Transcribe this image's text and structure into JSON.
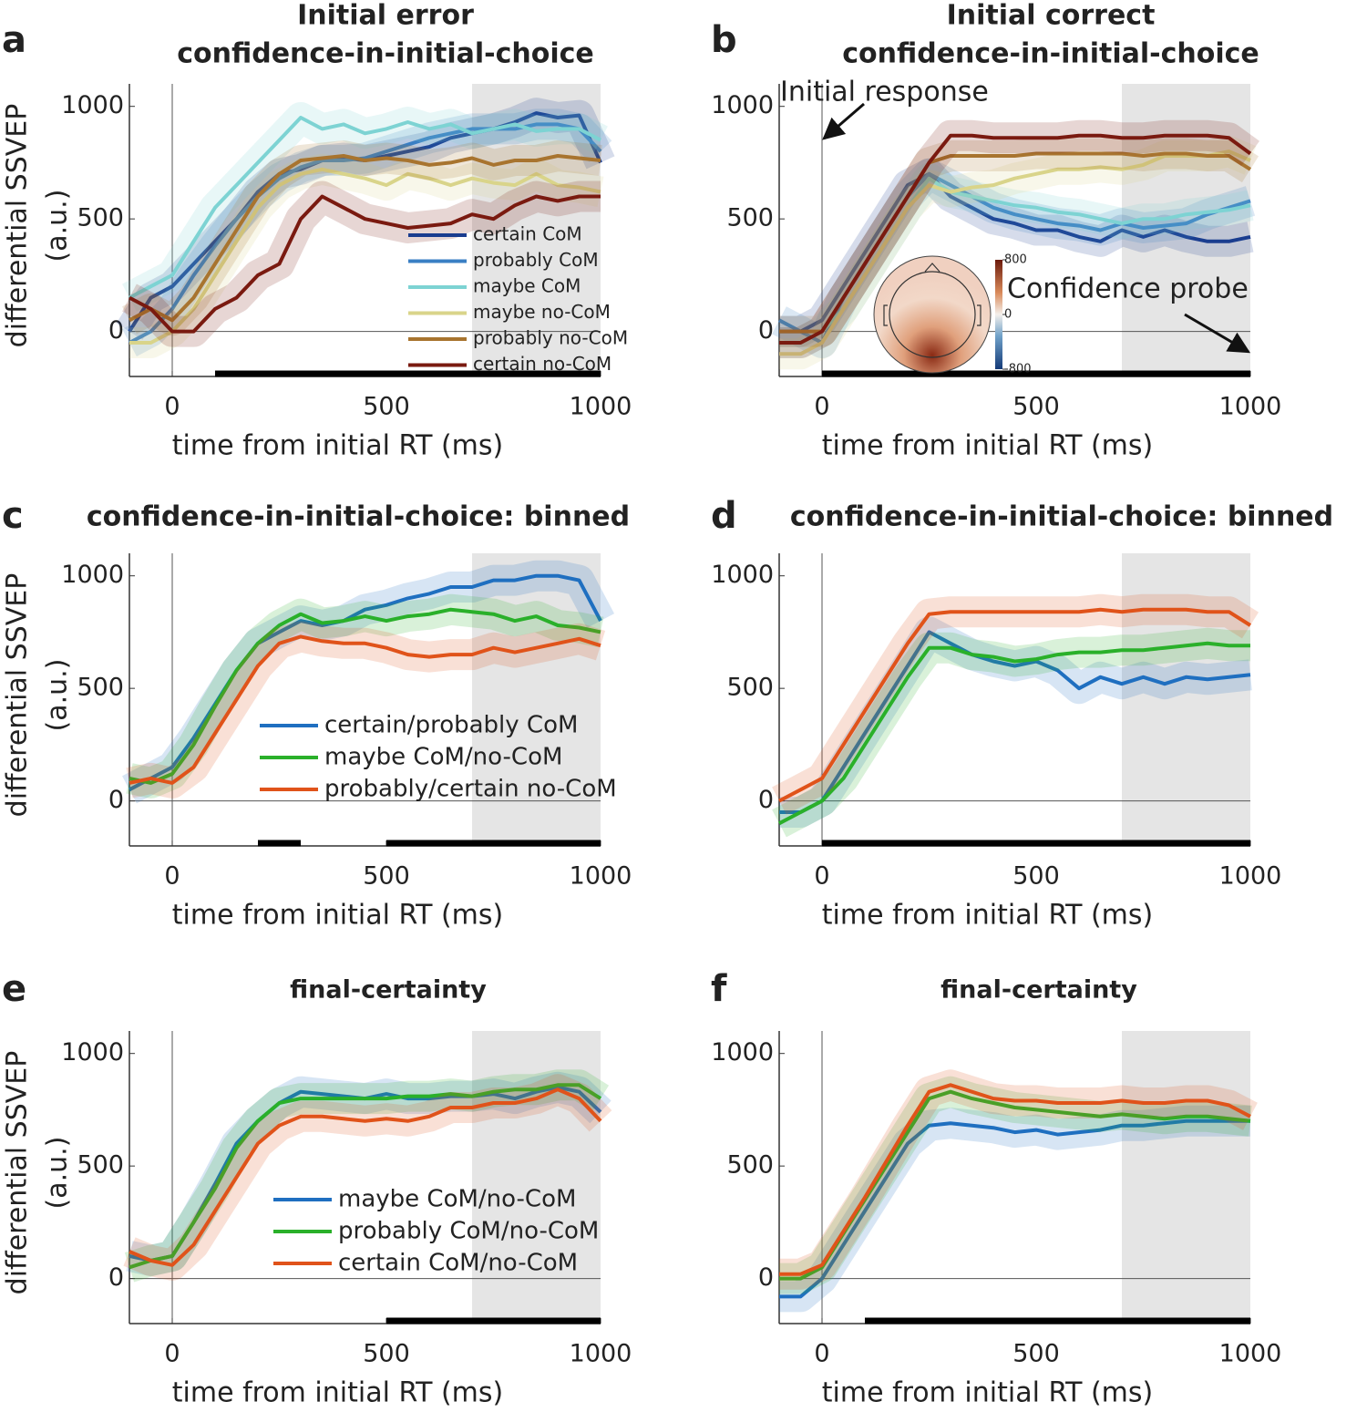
{
  "chart_data": [
    {
      "type": "line",
      "label": "a",
      "title": [
        "Initial error",
        "confidence-in-initial-choice"
      ],
      "xlabel": "time from initial RT (ms)",
      "ylabel": [
        "differential SSVEP",
        "(a.u.)"
      ],
      "x": [
        -100,
        -50,
        0,
        50,
        100,
        150,
        200,
        250,
        300,
        350,
        400,
        450,
        500,
        550,
        600,
        650,
        700,
        750,
        800,
        850,
        900,
        950,
        1000
      ],
      "xlim": [
        -100,
        1000
      ],
      "ylim": [
        -200,
        1100
      ],
      "xticks": [
        0,
        500,
        1000
      ],
      "yticks": [
        0,
        500,
        1000
      ],
      "shaded_region": [
        700,
        1000
      ],
      "significance": [
        [
          100,
          1000
        ]
      ],
      "legend": "lower right",
      "series": [
        {
          "name": "certain CoM",
          "color": "#1a3d8f",
          "values": [
            0,
            150,
            200,
            300,
            400,
            500,
            620,
            700,
            720,
            760,
            770,
            760,
            780,
            800,
            820,
            860,
            880,
            900,
            930,
            970,
            950,
            960,
            750
          ]
        },
        {
          "name": "probably CoM",
          "color": "#3a7fc4",
          "values": [
            -50,
            0,
            100,
            250,
            380,
            500,
            600,
            680,
            730,
            760,
            760,
            770,
            800,
            830,
            860,
            880,
            900,
            900,
            900,
            920,
            920,
            900,
            800
          ]
        },
        {
          "name": "maybe CoM",
          "color": "#7dd3d3",
          "values": [
            150,
            200,
            250,
            400,
            550,
            650,
            750,
            850,
            950,
            900,
            920,
            880,
            900,
            930,
            900,
            920,
            880,
            900,
            920,
            890,
            900,
            900,
            850
          ]
        },
        {
          "name": "maybe no-CoM",
          "color": "#d9d48a",
          "values": [
            -50,
            -50,
            0,
            100,
            250,
            400,
            550,
            650,
            700,
            720,
            700,
            680,
            650,
            700,
            680,
            650,
            680,
            660,
            650,
            700,
            650,
            640,
            620
          ]
        },
        {
          "name": "probably no-CoM",
          "color": "#a8742f",
          "values": [
            50,
            100,
            50,
            150,
            300,
            450,
            600,
            700,
            760,
            770,
            780,
            760,
            770,
            760,
            740,
            750,
            770,
            740,
            760,
            760,
            780,
            770,
            760
          ]
        },
        {
          "name": "certain no-CoM",
          "color": "#7a1a10",
          "values": [
            150,
            100,
            0,
            0,
            100,
            150,
            250,
            300,
            500,
            600,
            550,
            500,
            480,
            460,
            470,
            480,
            520,
            500,
            560,
            600,
            580,
            600,
            600
          ]
        }
      ]
    },
    {
      "type": "line",
      "label": "b",
      "title": [
        "Initial correct",
        "confidence-in-initial-choice"
      ],
      "xlabel": "time from initial RT (ms)",
      "x": [
        -100,
        -50,
        0,
        50,
        100,
        150,
        200,
        250,
        300,
        350,
        400,
        450,
        500,
        550,
        600,
        650,
        700,
        750,
        800,
        850,
        900,
        950,
        1000
      ],
      "xlim": [
        -100,
        1000
      ],
      "ylim": [
        -200,
        1100
      ],
      "xticks": [
        0,
        500,
        1000
      ],
      "yticks": [
        0,
        500,
        1000
      ],
      "shaded_region": [
        700,
        1000
      ],
      "significance": [
        [
          0,
          1000
        ]
      ],
      "annotations": [
        "Initial response",
        "Confidence probe"
      ],
      "inset": {
        "colorbar_ticks": [
          800,
          0,
          -800
        ]
      },
      "series": [
        {
          "name": "certain CoM",
          "color": "#1a3d8f",
          "values": [
            0,
            0,
            50,
            200,
            350,
            500,
            650,
            700,
            600,
            550,
            500,
            480,
            450,
            450,
            420,
            400,
            450,
            420,
            450,
            420,
            400,
            400,
            420
          ]
        },
        {
          "name": "probably CoM",
          "color": "#3a7fc4",
          "values": [
            50,
            0,
            -50,
            150,
            300,
            450,
            600,
            700,
            650,
            600,
            550,
            520,
            500,
            480,
            470,
            450,
            480,
            460,
            470,
            480,
            520,
            550,
            580
          ]
        },
        {
          "name": "maybe CoM",
          "color": "#7dd3d3",
          "values": [
            -50,
            -50,
            0,
            100,
            250,
            400,
            550,
            680,
            620,
            600,
            580,
            560,
            550,
            530,
            520,
            500,
            480,
            500,
            500,
            520,
            530,
            540,
            560
          ]
        },
        {
          "name": "maybe no-CoM",
          "color": "#d9d48a",
          "values": [
            -100,
            -100,
            -50,
            100,
            250,
            400,
            550,
            650,
            620,
            640,
            650,
            680,
            700,
            720,
            720,
            730,
            720,
            740,
            780,
            780,
            780,
            800,
            760
          ]
        },
        {
          "name": "probably no-CoM",
          "color": "#a8742f",
          "values": [
            0,
            0,
            0,
            150,
            300,
            450,
            600,
            750,
            780,
            780,
            780,
            780,
            790,
            790,
            790,
            790,
            790,
            780,
            790,
            790,
            780,
            780,
            720
          ]
        },
        {
          "name": "certain no-CoM",
          "color": "#7a1a10",
          "values": [
            -50,
            -50,
            0,
            150,
            300,
            450,
            600,
            750,
            870,
            870,
            860,
            860,
            860,
            860,
            870,
            870,
            860,
            860,
            870,
            870,
            870,
            860,
            790
          ]
        }
      ]
    },
    {
      "type": "line",
      "label": "c",
      "title": [
        "confidence-in-initial-choice: binned"
      ],
      "xlabel": "time from initial RT (ms)",
      "ylabel": [
        "differential SSVEP",
        "(a.u.)"
      ],
      "x": [
        -100,
        -50,
        0,
        50,
        100,
        150,
        200,
        250,
        300,
        350,
        400,
        450,
        500,
        550,
        600,
        650,
        700,
        750,
        800,
        850,
        900,
        950,
        1000
      ],
      "xlim": [
        -100,
        1000
      ],
      "ylim": [
        -200,
        1100
      ],
      "xticks": [
        0,
        500,
        1000
      ],
      "yticks": [
        0,
        500,
        1000
      ],
      "shaded_region": [
        700,
        1000
      ],
      "significance": [
        [
          200,
          300
        ],
        [
          500,
          1000
        ]
      ],
      "legend": "lower center",
      "series": [
        {
          "name": "certain/probably CoM",
          "color": "#1f6fc0",
          "values": [
            50,
            100,
            150,
            280,
            430,
            580,
            700,
            750,
            800,
            780,
            800,
            850,
            870,
            900,
            920,
            950,
            950,
            980,
            980,
            1000,
            1000,
            980,
            800
          ]
        },
        {
          "name": "maybe CoM/no-CoM",
          "color": "#2ab02a",
          "values": [
            100,
            80,
            120,
            250,
            420,
            580,
            700,
            780,
            830,
            790,
            800,
            820,
            800,
            820,
            830,
            850,
            840,
            830,
            800,
            820,
            780,
            770,
            750
          ]
        },
        {
          "name": "probably/certain no-CoM",
          "color": "#e0531a",
          "values": [
            80,
            100,
            80,
            150,
            300,
            450,
            600,
            700,
            730,
            710,
            700,
            700,
            680,
            650,
            640,
            650,
            650,
            680,
            660,
            680,
            700,
            720,
            690
          ]
        }
      ]
    },
    {
      "type": "line",
      "label": "d",
      "title": [
        "confidence-in-initial-choice: binned"
      ],
      "xlabel": "time from initial RT (ms)",
      "x": [
        -100,
        -50,
        0,
        50,
        100,
        150,
        200,
        250,
        300,
        350,
        400,
        450,
        500,
        550,
        600,
        650,
        700,
        750,
        800,
        850,
        900,
        950,
        1000
      ],
      "xlim": [
        -100,
        1000
      ],
      "ylim": [
        -200,
        1100
      ],
      "xticks": [
        0,
        500,
        1000
      ],
      "yticks": [
        0,
        500,
        1000
      ],
      "shaded_region": [
        700,
        1000
      ],
      "significance": [
        [
          0,
          1000
        ]
      ],
      "series": [
        {
          "name": "certain/probably CoM",
          "color": "#1f6fc0",
          "values": [
            -50,
            -50,
            0,
            150,
            300,
            450,
            600,
            750,
            700,
            650,
            620,
            600,
            620,
            580,
            500,
            550,
            520,
            550,
            520,
            550,
            540,
            550,
            560
          ]
        },
        {
          "name": "maybe CoM/no-CoM",
          "color": "#2ab02a",
          "values": [
            -100,
            -50,
            0,
            100,
            250,
            400,
            550,
            680,
            680,
            650,
            640,
            620,
            630,
            650,
            660,
            660,
            670,
            670,
            680,
            690,
            700,
            690,
            690
          ]
        },
        {
          "name": "probably/certain no-CoM",
          "color": "#e0531a",
          "values": [
            0,
            50,
            100,
            250,
            400,
            550,
            700,
            830,
            840,
            840,
            840,
            840,
            840,
            840,
            840,
            850,
            840,
            850,
            850,
            850,
            840,
            840,
            780
          ]
        }
      ]
    },
    {
      "type": "line",
      "label": "e",
      "title": [
        "final-certainty"
      ],
      "xlabel": "time from initial RT (ms)",
      "ylabel": [
        "differential SSVEP",
        "(a.u.)"
      ],
      "x": [
        -100,
        -50,
        0,
        50,
        100,
        150,
        200,
        250,
        300,
        350,
        400,
        450,
        500,
        550,
        600,
        650,
        700,
        750,
        800,
        850,
        900,
        950,
        1000
      ],
      "xlim": [
        -100,
        1000
      ],
      "ylim": [
        -200,
        1100
      ],
      "xticks": [
        0,
        500,
        1000
      ],
      "yticks": [
        0,
        500,
        1000
      ],
      "shaded_region": [
        700,
        1000
      ],
      "significance": [
        [
          500,
          1000
        ]
      ],
      "legend": "lower center",
      "series": [
        {
          "name": "maybe CoM/no-CoM",
          "color": "#1f6fc0",
          "values": [
            100,
            80,
            100,
            250,
            420,
            600,
            700,
            780,
            830,
            820,
            810,
            800,
            820,
            800,
            800,
            810,
            810,
            820,
            800,
            830,
            850,
            830,
            740
          ]
        },
        {
          "name": "probably CoM/no-CoM",
          "color": "#2ab02a",
          "values": [
            50,
            80,
            100,
            250,
            400,
            580,
            700,
            780,
            800,
            800,
            800,
            800,
            800,
            810,
            810,
            820,
            810,
            830,
            840,
            840,
            860,
            860,
            800
          ]
        },
        {
          "name": "certain CoM/no-CoM",
          "color": "#e0531a",
          "values": [
            120,
            80,
            60,
            150,
            300,
            450,
            600,
            680,
            720,
            720,
            710,
            700,
            710,
            700,
            720,
            760,
            760,
            780,
            780,
            800,
            840,
            800,
            700
          ]
        }
      ]
    },
    {
      "type": "line",
      "label": "f",
      "title": [
        "final-certainty"
      ],
      "xlabel": "time from initial RT (ms)",
      "x": [
        -100,
        -50,
        0,
        50,
        100,
        150,
        200,
        250,
        300,
        350,
        400,
        450,
        500,
        550,
        600,
        650,
        700,
        750,
        800,
        850,
        900,
        950,
        1000
      ],
      "xlim": [
        -100,
        1000
      ],
      "ylim": [
        -200,
        1100
      ],
      "xticks": [
        0,
        500,
        1000
      ],
      "yticks": [
        0,
        500,
        1000
      ],
      "shaded_region": [
        700,
        1000
      ],
      "significance": [
        [
          100,
          1000
        ]
      ],
      "series": [
        {
          "name": "maybe CoM/no-CoM",
          "color": "#1f6fc0",
          "values": [
            -80,
            -80,
            0,
            150,
            300,
            450,
            600,
            680,
            690,
            680,
            670,
            650,
            660,
            640,
            650,
            660,
            680,
            680,
            690,
            700,
            700,
            700,
            700
          ]
        },
        {
          "name": "probably CoM/no-CoM",
          "color": "#2ab02a",
          "values": [
            0,
            0,
            50,
            200,
            350,
            500,
            650,
            800,
            830,
            800,
            780,
            760,
            750,
            740,
            730,
            720,
            730,
            720,
            710,
            720,
            720,
            710,
            700
          ]
        },
        {
          "name": "certain CoM/no-CoM",
          "color": "#e0531a",
          "values": [
            20,
            20,
            60,
            210,
            360,
            520,
            680,
            830,
            860,
            830,
            800,
            790,
            790,
            780,
            780,
            780,
            790,
            780,
            780,
            790,
            790,
            770,
            720
          ]
        }
      ]
    }
  ]
}
